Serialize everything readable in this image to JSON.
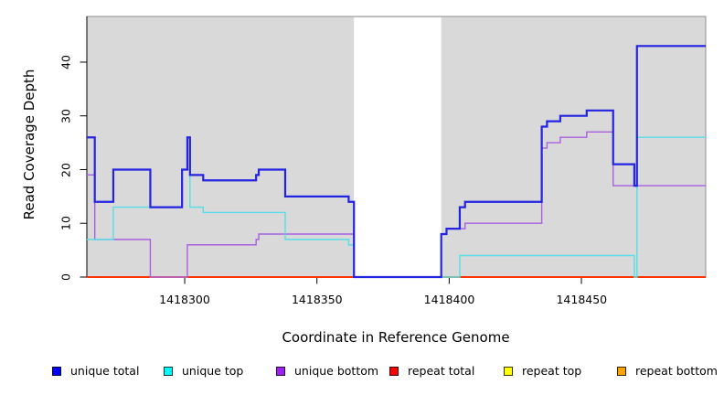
{
  "chart": {
    "y_axis_label": "Read Coverage Depth",
    "x_axis_label": "Coordinate in Reference Genome",
    "y_tick_labels": [
      "0",
      "10",
      "20",
      "30",
      "40"
    ],
    "x_tick_labels": [
      "1418300",
      "1418350",
      "1418400",
      "1418450"
    ]
  },
  "legend": {
    "items": [
      {
        "label": "unique total",
        "fill": "#0000f2"
      },
      {
        "label": "unique top",
        "fill": "#00ffff"
      },
      {
        "label": "unique bottom",
        "fill": "#a020f0"
      },
      {
        "label": "repeat total",
        "fill": "#ff0000"
      },
      {
        "label": "repeat top",
        "fill": "#ffff00"
      },
      {
        "label": "repeat bottom",
        "fill": "#ffa500"
      }
    ]
  },
  "chart_data": {
    "type": "line",
    "step": true,
    "title": "",
    "xlabel": "Coordinate in Reference Genome",
    "ylabel": "Read Coverage Depth",
    "x_range": [
      1418263,
      1418497
    ],
    "y_range": [
      0,
      48.5
    ],
    "x_ticks": [
      1418300,
      1418350,
      1418400,
      1418450
    ],
    "y_ticks": [
      0,
      10,
      20,
      30,
      40
    ],
    "grid": false,
    "legend_position": "bottom",
    "panel_bg": "#d9d9d9",
    "panel_border": "#8f8f8f",
    "uncovered_region": [
      1418364,
      1418397
    ],
    "shaded_regions": [
      [
        1418263,
        1418364
      ],
      [
        1418397,
        1418497
      ]
    ],
    "series": [
      {
        "name": "unique total",
        "color": "#2323e2",
        "width": 2.2,
        "points": [
          [
            1418263,
            26
          ],
          [
            1418266,
            14
          ],
          [
            1418273,
            20
          ],
          [
            1418287,
            13
          ],
          [
            1418299,
            20
          ],
          [
            1418301,
            26
          ],
          [
            1418302,
            19
          ],
          [
            1418307,
            18
          ],
          [
            1418327,
            19
          ],
          [
            1418328,
            20
          ],
          [
            1418338,
            15
          ],
          [
            1418362,
            14
          ],
          [
            1418364,
            0
          ],
          [
            1418397,
            8
          ],
          [
            1418399,
            9
          ],
          [
            1418404,
            13
          ],
          [
            1418406,
            14
          ],
          [
            1418435,
            28
          ],
          [
            1418437,
            29
          ],
          [
            1418442,
            30
          ],
          [
            1418452,
            31
          ],
          [
            1418462,
            21
          ],
          [
            1418470,
            17
          ],
          [
            1418471,
            43
          ]
        ]
      },
      {
        "name": "unique top",
        "color": "#55dde9",
        "width": 1.4,
        "points": [
          [
            1418263,
            7
          ],
          [
            1418273,
            13
          ],
          [
            1418299,
            20
          ],
          [
            1418302,
            13
          ],
          [
            1418307,
            12
          ],
          [
            1418338,
            7
          ],
          [
            1418362,
            6
          ],
          [
            1418364,
            0
          ],
          [
            1418404,
            4
          ],
          [
            1418470,
            0
          ],
          [
            1418471,
            26
          ]
        ]
      },
      {
        "name": "unique bottom",
        "color": "#a85fe0",
        "width": 1.4,
        "points": [
          [
            1418263,
            19
          ],
          [
            1418266,
            7
          ],
          [
            1418287,
            0
          ],
          [
            1418301,
            6
          ],
          [
            1418327,
            7
          ],
          [
            1418328,
            8
          ],
          [
            1418364,
            0
          ],
          [
            1418397,
            8
          ],
          [
            1418399,
            9
          ],
          [
            1418406,
            10
          ],
          [
            1418435,
            24
          ],
          [
            1418437,
            25
          ],
          [
            1418442,
            26
          ],
          [
            1418452,
            27
          ],
          [
            1418462,
            17
          ]
        ]
      },
      {
        "name": "repeat total",
        "color": "#ff0000",
        "width": 1.4,
        "points": [
          [
            1418263,
            0
          ]
        ]
      },
      {
        "name": "repeat top",
        "color": "#ffff00",
        "width": 1.4,
        "points": [
          [
            1418263,
            0
          ]
        ]
      },
      {
        "name": "repeat bottom",
        "color": "#ffa019",
        "width": 2.0,
        "points": [
          [
            1418263,
            0
          ]
        ]
      }
    ]
  }
}
